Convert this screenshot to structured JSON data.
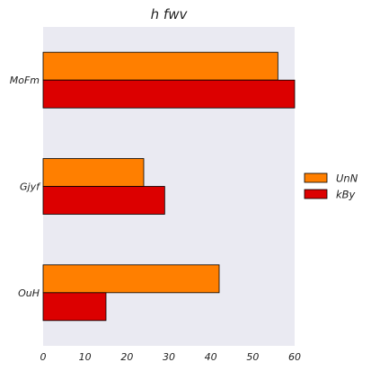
{
  "chart_data": {
    "type": "bar",
    "orientation": "horizontal",
    "title": "h fwv",
    "xlabel": "",
    "ylabel": "",
    "categories": [
      "MoFm",
      "Gjyf",
      "OuH"
    ],
    "series": [
      {
        "name": "UnN",
        "values": [
          56,
          24,
          42
        ],
        "color": "#ff7f00"
      },
      {
        "name": "kBy",
        "values": [
          60,
          29,
          15
        ],
        "color": "#dc0000"
      }
    ],
    "xlim": [
      0,
      60
    ],
    "xticks": [
      0,
      10,
      20,
      30,
      40,
      50,
      60
    ],
    "grid": false,
    "legend_position": "right"
  },
  "colors": {
    "plot_background": "#eaeaf2",
    "bar_edge": "#000000"
  }
}
